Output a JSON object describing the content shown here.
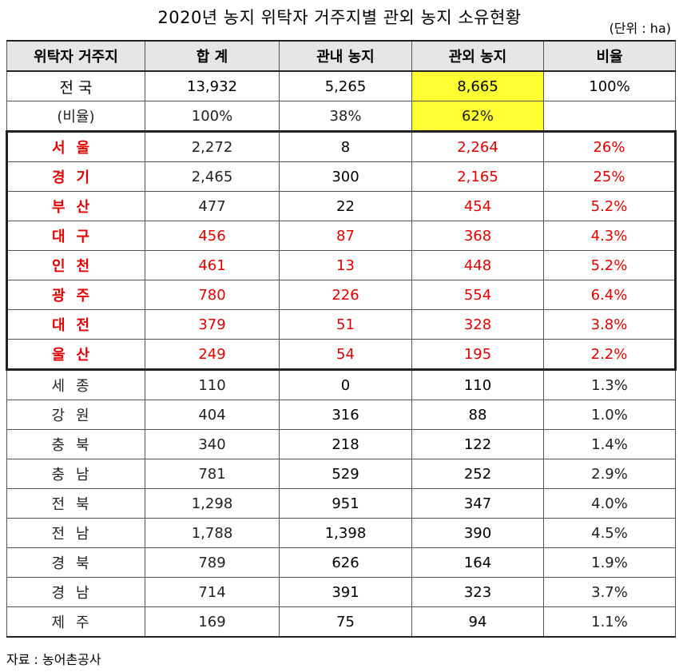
{
  "title": "2020년 농지 위탁자 거주지별 관외 농지 소유현황",
  "unit": "(단위 : ha)",
  "headers": [
    "위탁자 거주지",
    "합 계",
    "관내 농지",
    "관외 농지",
    "비율"
  ],
  "total": {
    "region": "전 국",
    "sum": "13,932",
    "inside": "5,265",
    "outside": "8,665",
    "ratio": "100%"
  },
  "ratio_row": {
    "region": "(비율)",
    "sum": "100%",
    "inside": "38%",
    "outside": "62%",
    "ratio": ""
  },
  "rows": [
    {
      "region": "서울",
      "sum": "2,272",
      "inside": "8",
      "outside": "2,264",
      "ratio": "26%"
    },
    {
      "region": "경기",
      "sum": "2,465",
      "inside": "300",
      "outside": "2,165",
      "ratio": "25%"
    },
    {
      "region": "부산",
      "sum": "477",
      "inside": "22",
      "outside": "454",
      "ratio": "5.2%"
    },
    {
      "region": "대구",
      "sum": "456",
      "inside": "87",
      "outside": "368",
      "ratio": "4.3%"
    },
    {
      "region": "인천",
      "sum": "461",
      "inside": "13",
      "outside": "448",
      "ratio": "5.2%"
    },
    {
      "region": "광주",
      "sum": "780",
      "inside": "226",
      "outside": "554",
      "ratio": "6.4%"
    },
    {
      "region": "대전",
      "sum": "379",
      "inside": "51",
      "outside": "328",
      "ratio": "3.8%"
    },
    {
      "region": "울산",
      "sum": "249",
      "inside": "54",
      "outside": "195",
      "ratio": "2.2%"
    },
    {
      "region": "세종",
      "sum": "110",
      "inside": "0",
      "outside": "110",
      "ratio": "1.3%"
    },
    {
      "region": "강원",
      "sum": "404",
      "inside": "316",
      "outside": "88",
      "ratio": "1.0%"
    },
    {
      "region": "충북",
      "sum": "340",
      "inside": "218",
      "outside": "122",
      "ratio": "1.4%"
    },
    {
      "region": "충남",
      "sum": "781",
      "inside": "529",
      "outside": "252",
      "ratio": "2.9%"
    },
    {
      "region": "전북",
      "sum": "1,298",
      "inside": "951",
      "outside": "347",
      "ratio": "4.0%"
    },
    {
      "region": "전남",
      "sum": "1,788",
      "inside": "1,398",
      "outside": "390",
      "ratio": "4.5%"
    },
    {
      "region": "경북",
      "sum": "789",
      "inside": "626",
      "outside": "164",
      "ratio": "1.9%"
    },
    {
      "region": "경남",
      "sum": "714",
      "inside": "391",
      "outside": "323",
      "ratio": "3.7%"
    },
    {
      "region": "제주",
      "sum": "169",
      "inside": "75",
      "outside": "94",
      "ratio": "1.1%"
    }
  ],
  "colors": {
    "highlight": "#ffff33",
    "emphasis": "#e00000"
  },
  "source": "자료 : 농어촌공사"
}
